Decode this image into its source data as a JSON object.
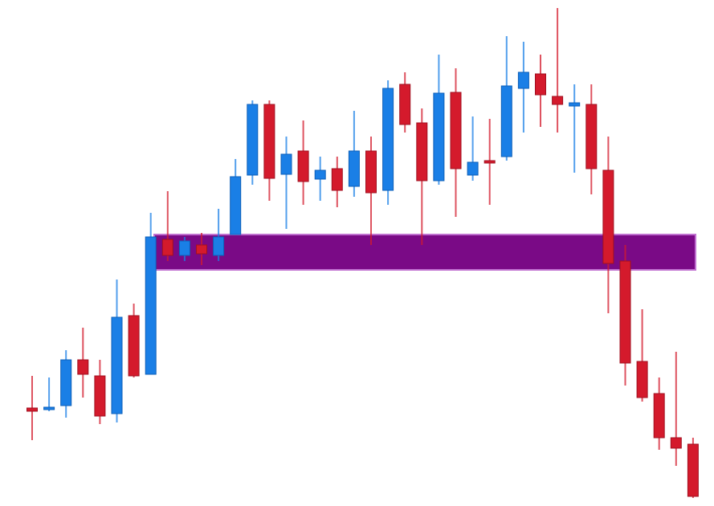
{
  "chart_data": {
    "type": "candlestick",
    "open": [
      122,
      120,
      125,
      182,
      162,
      115,
      237,
      164,
      332,
      312,
      325,
      312,
      338,
      412,
      500,
      413,
      442,
      407,
      420,
      398,
      442,
      393,
      525,
      477,
      405,
      515,
      412,
      430,
      435,
      520,
      538,
      510,
      498,
      500,
      418,
      305,
      180,
      140,
      85,
      77
    ],
    "high": [
      162,
      160,
      194,
      222,
      182,
      282,
      252,
      365,
      392,
      335,
      340,
      370,
      432,
      505,
      505,
      460,
      480,
      435,
      435,
      492,
      460,
      530,
      540,
      495,
      562,
      545,
      485,
      482,
      585,
      578,
      562,
      620,
      525,
      525,
      460,
      325,
      245,
      160,
      192,
      85
    ],
    "low": [
      82,
      118,
      110,
      135,
      102,
      104,
      160,
      164,
      305,
      305,
      300,
      305,
      338,
      400,
      380,
      345,
      375,
      380,
      372,
      385,
      325,
      375,
      465,
      325,
      400,
      360,
      405,
      375,
      430,
      465,
      472,
      465,
      415,
      388,
      240,
      150,
      130,
      70,
      50,
      10
    ],
    "close": [
      118,
      123,
      182,
      164,
      112,
      235,
      162,
      335,
      312,
      330,
      314,
      335,
      410,
      500,
      408,
      438,
      404,
      418,
      393,
      442,
      390,
      520,
      475,
      405,
      514,
      420,
      428,
      428,
      523,
      540,
      512,
      500,
      502,
      420,
      302,
      178,
      135,
      85,
      72,
      12
    ],
    "up_color": "#1a7fe6",
    "down_color": "#d41a2c",
    "zone": {
      "low": 294,
      "high": 338,
      "color": "#7a0a86"
    },
    "ylim": [
      0,
      630
    ]
  }
}
